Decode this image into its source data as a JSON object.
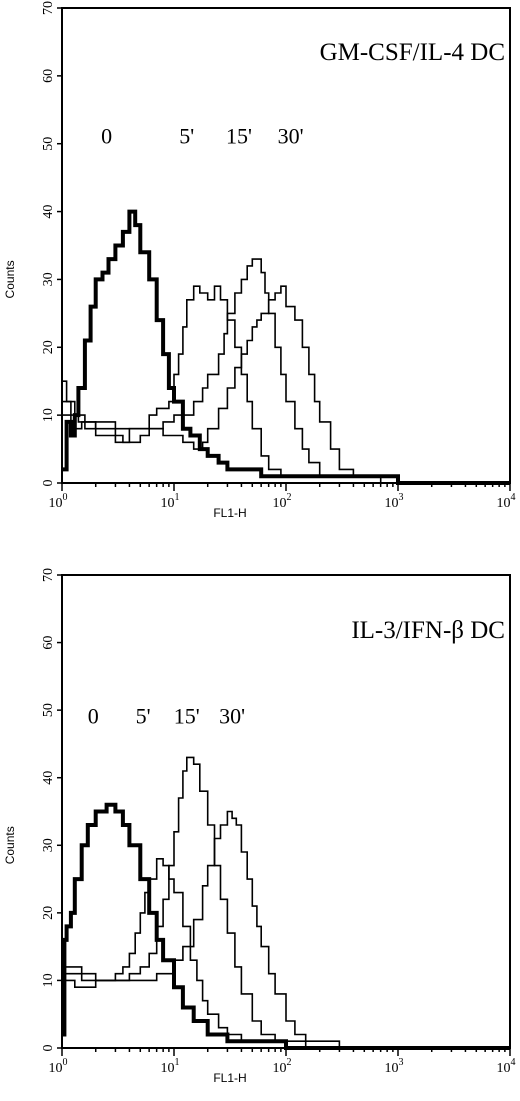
{
  "chart_data": [
    {
      "type": "line",
      "title": "GM-CSF/IL-4 DC",
      "xlabel": "FL1-H",
      "ylabel": "Counts",
      "xscale": "log",
      "xlim": [
        1,
        10000
      ],
      "ylim": [
        0,
        70
      ],
      "yticks": [
        0,
        10,
        20,
        30,
        40,
        50,
        60,
        70
      ],
      "xticks": [
        {
          "base": "10",
          "exp": "0"
        },
        {
          "base": "10",
          "exp": "1"
        },
        {
          "base": "10",
          "exp": "2"
        },
        {
          "base": "10",
          "exp": "3"
        },
        {
          "base": "10",
          "exp": "4"
        }
      ],
      "annotations": [
        {
          "text": "0",
          "x": 2.5,
          "y": 50
        },
        {
          "text": "5'",
          "x": 13,
          "y": 50
        },
        {
          "text": "15'",
          "x": 38,
          "y": 50
        },
        {
          "text": "30'",
          "x": 110,
          "y": 50
        }
      ],
      "series": [
        {
          "label": "0",
          "bold": true,
          "points": [
            [
              1,
              2
            ],
            [
              1.1,
              9
            ],
            [
              1.2,
              7
            ],
            [
              1.3,
              10
            ],
            [
              1.4,
              14
            ],
            [
              1.6,
              21
            ],
            [
              1.8,
              26
            ],
            [
              2,
              30
            ],
            [
              2.3,
              31
            ],
            [
              2.6,
              33
            ],
            [
              3,
              35
            ],
            [
              3.5,
              37
            ],
            [
              4,
              40
            ],
            [
              4.5,
              38
            ],
            [
              5,
              34
            ],
            [
              6,
              30
            ],
            [
              7,
              24
            ],
            [
              8,
              19
            ],
            [
              9,
              14
            ],
            [
              10,
              12
            ],
            [
              12,
              8
            ],
            [
              14,
              7
            ],
            [
              17,
              5
            ],
            [
              20,
              4
            ],
            [
              25,
              3
            ],
            [
              30,
              2
            ],
            [
              40,
              2
            ],
            [
              50,
              2
            ],
            [
              60,
              1
            ],
            [
              80,
              1
            ],
            [
              100,
              1
            ],
            [
              200,
              1
            ],
            [
              300,
              1
            ],
            [
              1000,
              0
            ],
            [
              10000,
              0
            ]
          ]
        },
        {
          "label": "5'",
          "points": [
            [
              1,
              15
            ],
            [
              1.1,
              12
            ],
            [
              1.2,
              10
            ],
            [
              1.4,
              9
            ],
            [
              1.6,
              8
            ],
            [
              1.8,
              8
            ],
            [
              2,
              9
            ],
            [
              2.5,
              9
            ],
            [
              3,
              7
            ],
            [
              3.5,
              6
            ],
            [
              4,
              8
            ],
            [
              5,
              8
            ],
            [
              6,
              10
            ],
            [
              7,
              11
            ],
            [
              8,
              11
            ],
            [
              9,
              12
            ],
            [
              10,
              16
            ],
            [
              11,
              19
            ],
            [
              12,
              23
            ],
            [
              13,
              27
            ],
            [
              15,
              29
            ],
            [
              17,
              28
            ],
            [
              20,
              27
            ],
            [
              23,
              29
            ],
            [
              26,
              27
            ],
            [
              30,
              24
            ],
            [
              35,
              20
            ],
            [
              40,
              16
            ],
            [
              45,
              12
            ],
            [
              50,
              8
            ],
            [
              60,
              4
            ],
            [
              70,
              2
            ],
            [
              90,
              1
            ],
            [
              150,
              1
            ],
            [
              300,
              1
            ],
            [
              1000,
              0
            ],
            [
              10000,
              0
            ]
          ]
        },
        {
          "label": "15'",
          "points": [
            [
              1,
              10
            ],
            [
              1.2,
              8
            ],
            [
              1.5,
              9
            ],
            [
              2,
              7
            ],
            [
              3,
              6
            ],
            [
              4,
              6
            ],
            [
              5,
              7
            ],
            [
              6,
              8
            ],
            [
              8,
              9
            ],
            [
              10,
              10
            ],
            [
              12,
              10
            ],
            [
              15,
              12
            ],
            [
              18,
              14
            ],
            [
              20,
              16
            ],
            [
              25,
              19
            ],
            [
              28,
              22
            ],
            [
              30,
              25
            ],
            [
              35,
              28
            ],
            [
              40,
              30
            ],
            [
              45,
              32
            ],
            [
              50,
              33
            ],
            [
              55,
              33
            ],
            [
              60,
              31
            ],
            [
              65,
              28
            ],
            [
              70,
              25
            ],
            [
              80,
              20
            ],
            [
              90,
              16
            ],
            [
              100,
              12
            ],
            [
              120,
              8
            ],
            [
              140,
              5
            ],
            [
              160,
              3
            ],
            [
              200,
              1
            ],
            [
              300,
              1
            ],
            [
              1000,
              0
            ],
            [
              10000,
              0
            ]
          ]
        },
        {
          "label": "30'",
          "points": [
            [
              1,
              12
            ],
            [
              1.3,
              10
            ],
            [
              1.6,
              9
            ],
            [
              2,
              8
            ],
            [
              3,
              8
            ],
            [
              4,
              8
            ],
            [
              6,
              8
            ],
            [
              8,
              7
            ],
            [
              10,
              7
            ],
            [
              12,
              6
            ],
            [
              15,
              5
            ],
            [
              18,
              6
            ],
            [
              20,
              8
            ],
            [
              25,
              11
            ],
            [
              30,
              14
            ],
            [
              35,
              17
            ],
            [
              40,
              19
            ],
            [
              45,
              21
            ],
            [
              50,
              23
            ],
            [
              55,
              24
            ],
            [
              60,
              25
            ],
            [
              70,
              27
            ],
            [
              80,
              28
            ],
            [
              90,
              29
            ],
            [
              100,
              26
            ],
            [
              120,
              24
            ],
            [
              140,
              20
            ],
            [
              160,
              16
            ],
            [
              180,
              12
            ],
            [
              200,
              9
            ],
            [
              250,
              5
            ],
            [
              300,
              2
            ],
            [
              400,
              1
            ],
            [
              500,
              1
            ],
            [
              700,
              0
            ],
            [
              1000,
              0
            ],
            [
              10000,
              0
            ]
          ]
        }
      ]
    },
    {
      "type": "line",
      "title": "IL-3/IFN-β DC",
      "xlabel": "FL1-H",
      "ylabel": "Counts",
      "xscale": "log",
      "xlim": [
        1,
        10000
      ],
      "ylim": [
        0,
        70
      ],
      "yticks": [
        0,
        10,
        20,
        30,
        40,
        50,
        60,
        70
      ],
      "xticks": [
        {
          "base": "10",
          "exp": "0"
        },
        {
          "base": "10",
          "exp": "1"
        },
        {
          "base": "10",
          "exp": "2"
        },
        {
          "base": "10",
          "exp": "3"
        },
        {
          "base": "10",
          "exp": "4"
        }
      ],
      "annotations": [
        {
          "text": "0",
          "x": 1.9,
          "y": 48
        },
        {
          "text": "5'",
          "x": 5.3,
          "y": 48
        },
        {
          "text": "15'",
          "x": 13,
          "y": 48
        },
        {
          "text": "30'",
          "x": 33,
          "y": 48
        }
      ],
      "series": [
        {
          "label": "0",
          "bold": true,
          "points": [
            [
              1,
              2
            ],
            [
              1.05,
              16
            ],
            [
              1.1,
              18
            ],
            [
              1.2,
              20
            ],
            [
              1.3,
              25
            ],
            [
              1.5,
              30
            ],
            [
              1.7,
              33
            ],
            [
              2,
              35
            ],
            [
              2.5,
              36
            ],
            [
              3,
              35
            ],
            [
              3.5,
              33
            ],
            [
              4,
              30
            ],
            [
              5,
              25
            ],
            [
              6,
              20
            ],
            [
              7,
              16
            ],
            [
              8,
              13
            ],
            [
              10,
              9
            ],
            [
              12,
              6
            ],
            [
              15,
              4
            ],
            [
              20,
              2
            ],
            [
              30,
              1
            ],
            [
              50,
              1
            ],
            [
              100,
              0
            ],
            [
              10000,
              0
            ]
          ]
        },
        {
          "label": "5'",
          "points": [
            [
              1,
              10
            ],
            [
              1.3,
              9
            ],
            [
              1.6,
              9
            ],
            [
              2,
              10
            ],
            [
              2.5,
              10
            ],
            [
              3,
              11
            ],
            [
              3.5,
              12
            ],
            [
              4,
              14
            ],
            [
              4.5,
              17
            ],
            [
              5,
              20
            ],
            [
              5.5,
              23
            ],
            [
              6,
              25
            ],
            [
              7,
              28
            ],
            [
              8,
              27
            ],
            [
              9,
              25
            ],
            [
              10,
              23
            ],
            [
              12,
              18
            ],
            [
              14,
              13
            ],
            [
              16,
              10
            ],
            [
              18,
              7
            ],
            [
              20,
              5
            ],
            [
              25,
              3
            ],
            [
              30,
              2
            ],
            [
              40,
              1
            ],
            [
              60,
              1
            ],
            [
              100,
              0
            ],
            [
              10000,
              0
            ]
          ]
        },
        {
          "label": "15'",
          "points": [
            [
              1,
              12
            ],
            [
              1.5,
              10
            ],
            [
              2,
              10
            ],
            [
              3,
              10
            ],
            [
              4,
              11
            ],
            [
              5,
              12
            ],
            [
              6,
              14
            ],
            [
              7,
              18
            ],
            [
              8,
              22
            ],
            [
              9,
              27
            ],
            [
              10,
              32
            ],
            [
              11,
              37
            ],
            [
              12,
              41
            ],
            [
              13,
              43
            ],
            [
              14,
              43
            ],
            [
              15,
              42
            ],
            [
              17,
              38
            ],
            [
              20,
              33
            ],
            [
              23,
              27
            ],
            [
              26,
              22
            ],
            [
              30,
              17
            ],
            [
              35,
              12
            ],
            [
              40,
              8
            ],
            [
              50,
              4
            ],
            [
              60,
              2
            ],
            [
              80,
              1
            ],
            [
              100,
              1
            ],
            [
              150,
              0
            ],
            [
              10000,
              0
            ]
          ]
        },
        {
          "label": "30'",
          "points": [
            [
              1,
              11
            ],
            [
              2,
              10
            ],
            [
              3,
              10
            ],
            [
              4,
              10
            ],
            [
              5,
              10
            ],
            [
              6,
              10
            ],
            [
              7,
              11
            ],
            [
              8,
              11
            ],
            [
              10,
              13
            ],
            [
              12,
              15
            ],
            [
              15,
              19
            ],
            [
              18,
              24
            ],
            [
              20,
              27
            ],
            [
              23,
              31
            ],
            [
              26,
              33
            ],
            [
              30,
              35
            ],
            [
              33,
              34
            ],
            [
              36,
              33
            ],
            [
              40,
              29
            ],
            [
              45,
              25
            ],
            [
              50,
              21
            ],
            [
              55,
              18
            ],
            [
              60,
              15
            ],
            [
              70,
              11
            ],
            [
              80,
              8
            ],
            [
              100,
              4
            ],
            [
              120,
              2
            ],
            [
              150,
              1
            ],
            [
              200,
              1
            ],
            [
              300,
              0
            ],
            [
              10000,
              0
            ]
          ]
        }
      ]
    }
  ]
}
